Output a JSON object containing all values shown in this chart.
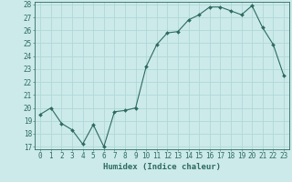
{
  "x": [
    0,
    1,
    2,
    3,
    4,
    5,
    6,
    7,
    8,
    9,
    10,
    11,
    12,
    13,
    14,
    15,
    16,
    17,
    18,
    19,
    20,
    21,
    22,
    23
  ],
  "y": [
    19.5,
    20.0,
    18.8,
    18.3,
    17.2,
    18.7,
    17.0,
    19.7,
    19.8,
    20.0,
    23.2,
    24.9,
    25.8,
    25.9,
    26.8,
    27.2,
    27.8,
    27.8,
    27.5,
    27.2,
    27.9,
    26.2,
    24.9,
    22.5
  ],
  "xlabel": "Humidex (Indice chaleur)",
  "ylim": [
    17,
    28
  ],
  "xlim": [
    -0.5,
    23.5
  ],
  "yticks": [
    17,
    18,
    19,
    20,
    21,
    22,
    23,
    24,
    25,
    26,
    27,
    28
  ],
  "xticks": [
    0,
    1,
    2,
    3,
    4,
    5,
    6,
    7,
    8,
    9,
    10,
    11,
    12,
    13,
    14,
    15,
    16,
    17,
    18,
    19,
    20,
    21,
    22,
    23
  ],
  "line_color": "#2d6b5e",
  "marker": "D",
  "marker_size": 2.0,
  "bg_color": "#cceaea",
  "grid_color": "#b0d8d8",
  "label_fontsize": 6.5,
  "tick_fontsize": 5.5
}
